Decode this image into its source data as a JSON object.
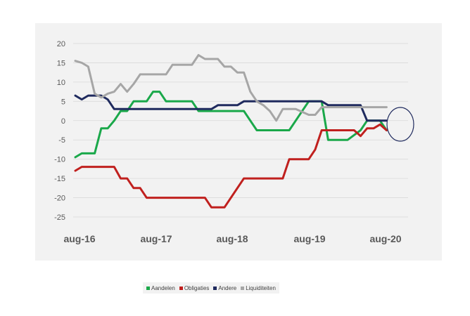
{
  "chart_data": {
    "type": "line",
    "title": "",
    "xlabel": "",
    "ylabel": "",
    "ylim": [
      -25,
      20
    ],
    "y_ticks": [
      20,
      15,
      10,
      5,
      0,
      -5,
      -10,
      -15,
      -20,
      -25
    ],
    "x_tick_labels": [
      "aug-16",
      "aug-17",
      "aug-18",
      "aug-19",
      "aug-20"
    ],
    "x_range": [
      "2016-08",
      "2020-11"
    ],
    "grid": "horizontal",
    "legend_position": "bottom",
    "annotation": "circle highlighting latest values (aug-20 onwards)",
    "series": [
      {
        "name": "Aandelen",
        "color": "#1aa84a",
        "points": [
          [
            "2016-08",
            -9.5
          ],
          [
            "2016-09",
            -8.5
          ],
          [
            "2016-10",
            -8.5
          ],
          [
            "2016-11",
            -8.5
          ],
          [
            "2016-12",
            -2
          ],
          [
            "2017-01",
            -2
          ],
          [
            "2017-02",
            0
          ],
          [
            "2017-03",
            2.5
          ],
          [
            "2017-04",
            2.5
          ],
          [
            "2017-05",
            5
          ],
          [
            "2017-06",
            5
          ],
          [
            "2017-07",
            5
          ],
          [
            "2017-08",
            7.5
          ],
          [
            "2017-09",
            7.5
          ],
          [
            "2017-10",
            5
          ],
          [
            "2017-11",
            5
          ],
          [
            "2018-02",
            5
          ],
          [
            "2018-03",
            2.5
          ],
          [
            "2018-10",
            2.5
          ],
          [
            "2018-11",
            0
          ],
          [
            "2018-12",
            -2.5
          ],
          [
            "2019-05",
            -2.5
          ],
          [
            "2019-06",
            0
          ],
          [
            "2019-07",
            2.5
          ],
          [
            "2019-08",
            5
          ],
          [
            "2019-10",
            5
          ],
          [
            "2019-11",
            -5
          ],
          [
            "2020-02",
            -5
          ],
          [
            "2020-04",
            -2.5
          ],
          [
            "2020-05",
            0
          ],
          [
            "2020-07",
            0
          ],
          [
            "2020-08",
            -2.5
          ]
        ]
      },
      {
        "name": "Obligaties",
        "color": "#c0201e",
        "points": [
          [
            "2016-08",
            -13
          ],
          [
            "2016-09",
            -12
          ],
          [
            "2016-12",
            -12
          ],
          [
            "2017-01",
            -12
          ],
          [
            "2017-02",
            -12
          ],
          [
            "2017-03",
            -15
          ],
          [
            "2017-04",
            -15
          ],
          [
            "2017-05",
            -17.5
          ],
          [
            "2017-06",
            -17.5
          ],
          [
            "2017-07",
            -20
          ],
          [
            "2018-04",
            -20
          ],
          [
            "2018-05",
            -22.5
          ],
          [
            "2018-07",
            -22.5
          ],
          [
            "2018-08",
            -20
          ],
          [
            "2018-09",
            -17.5
          ],
          [
            "2018-10",
            -15
          ],
          [
            "2018-12",
            -15
          ],
          [
            "2019-04",
            -15
          ],
          [
            "2019-05",
            -10
          ],
          [
            "2019-06",
            -10
          ],
          [
            "2019-08",
            -10
          ],
          [
            "2019-09",
            -7.5
          ],
          [
            "2019-10",
            -2.5
          ],
          [
            "2019-11",
            -2.5
          ],
          [
            "2020-02",
            -2.5
          ],
          [
            "2020-03",
            -2.5
          ],
          [
            "2020-04",
            -4
          ],
          [
            "2020-05",
            -2
          ],
          [
            "2020-06",
            -2
          ],
          [
            "2020-07",
            -1
          ],
          [
            "2020-08",
            -2.5
          ]
        ]
      },
      {
        "name": "Andere",
        "color": "#1f2a5e",
        "points": [
          [
            "2016-08",
            6.5
          ],
          [
            "2016-09",
            5.5
          ],
          [
            "2016-10",
            6.5
          ],
          [
            "2016-11",
            6.5
          ],
          [
            "2016-12",
            6.5
          ],
          [
            "2017-01",
            5.5
          ],
          [
            "2017-02",
            3
          ],
          [
            "2018-04",
            3
          ],
          [
            "2018-05",
            3
          ],
          [
            "2018-06",
            4
          ],
          [
            "2018-09",
            4
          ],
          [
            "2018-10",
            5
          ],
          [
            "2019-10",
            5
          ],
          [
            "2019-11",
            4
          ],
          [
            "2020-03",
            4
          ],
          [
            "2020-04",
            4
          ],
          [
            "2020-05",
            0
          ],
          [
            "2020-08",
            0
          ]
        ]
      },
      {
        "name": "Liquiditeiten",
        "color": "#a6a6a6",
        "points": [
          [
            "2016-08",
            15.5
          ],
          [
            "2016-09",
            15
          ],
          [
            "2016-10",
            14
          ],
          [
            "2016-11",
            7
          ],
          [
            "2016-12",
            6
          ],
          [
            "2017-01",
            7
          ],
          [
            "2017-02",
            7.5
          ],
          [
            "2017-03",
            9.5
          ],
          [
            "2017-04",
            7.5
          ],
          [
            "2017-05",
            9.5
          ],
          [
            "2017-06",
            12
          ],
          [
            "2017-10",
            12
          ],
          [
            "2017-11",
            14.5
          ],
          [
            "2018-02",
            14.5
          ],
          [
            "2018-03",
            17
          ],
          [
            "2018-04",
            16
          ],
          [
            "2018-05",
            16
          ],
          [
            "2018-06",
            16
          ],
          [
            "2018-07",
            14
          ],
          [
            "2018-08",
            14
          ],
          [
            "2018-09",
            12.5
          ],
          [
            "2018-10",
            12.5
          ],
          [
            "2018-11",
            7.5
          ],
          [
            "2018-12",
            5
          ],
          [
            "2019-01",
            4
          ],
          [
            "2019-02",
            2.5
          ],
          [
            "2019-03",
            0
          ],
          [
            "2019-04",
            3
          ],
          [
            "2019-06",
            3
          ],
          [
            "2019-08",
            1.5
          ],
          [
            "2019-09",
            1.5
          ],
          [
            "2019-10",
            3.5
          ],
          [
            "2020-08",
            3.5
          ]
        ]
      }
    ]
  }
}
